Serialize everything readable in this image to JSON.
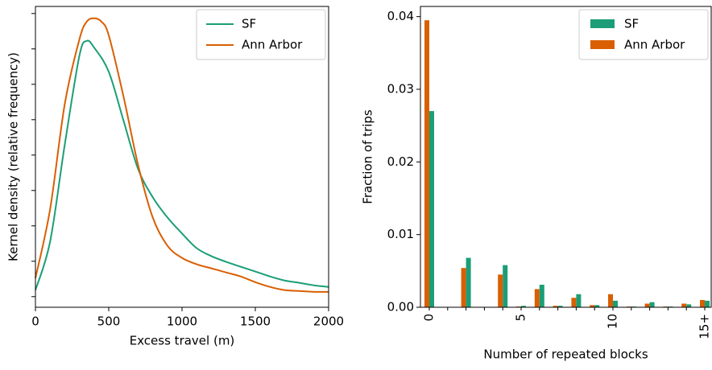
{
  "chart_data": [
    {
      "type": "line",
      "xlabel": "Excess travel (m)",
      "ylabel": "Kernel density (relative frequency)",
      "xlim": [
        0,
        2000
      ],
      "xticks": [
        0,
        500,
        1000,
        1500,
        2000
      ],
      "ylim": [
        -6e-05,
        0.00164
      ],
      "yticks": [
        0,
        0.0002,
        0.0004,
        0.0006,
        0.0008,
        0.001,
        0.0012,
        0.0014,
        0.0016
      ],
      "show_ytick_labels": false,
      "legend": "upper right",
      "series": [
        {
          "name": "SF",
          "color": "#1b9e77",
          "x": [
            0,
            100,
            200,
            300,
            350,
            400,
            500,
            600,
            700,
            800,
            900,
            1000,
            1100,
            1200,
            1300,
            1400,
            1500,
            1600,
            1700,
            1800,
            1900,
            2000
          ],
          "values": [
            3.7e-05,
            0.000311,
            0.000859,
            0.001362,
            0.001445,
            0.001408,
            0.001271,
            0.000997,
            0.000722,
            0.000562,
            0.000448,
            0.000357,
            0.000274,
            0.000229,
            0.000197,
            0.000169,
            0.000142,
            0.000114,
            9.1e-05,
            7.8e-05,
            6.4e-05,
            5.5e-05
          ]
        },
        {
          "name": "Ann Arbor",
          "color": "#d95f02",
          "x": [
            0,
            100,
            200,
            300,
            350,
            400,
            450,
            500,
            600,
            700,
            800,
            900,
            1000,
            1100,
            1200,
            1300,
            1400,
            1500,
            1600,
            1700,
            1800,
            1900,
            2000
          ],
          "values": [
            0.000105,
            0.000494,
            0.001088,
            0.001454,
            0.001554,
            0.001573,
            0.001554,
            0.001477,
            0.001134,
            0.000745,
            0.000448,
            0.000288,
            0.000219,
            0.000183,
            0.00016,
            0.000137,
            0.000114,
            8.2e-05,
            5.5e-05,
            3.7e-05,
            3.2e-05,
            2.7e-05,
            2.7e-05
          ]
        }
      ]
    },
    {
      "type": "bar",
      "xlabel": "Number of repeated blocks",
      "ylabel": "Fraction of trips",
      "categories": [
        "0",
        null,
        null,
        null,
        null,
        "5",
        null,
        null,
        null,
        null,
        "10",
        null,
        null,
        null,
        null,
        "15+"
      ],
      "ylim": [
        0,
        0.0414
      ],
      "yticks": [
        {
          "value": 0,
          "label": "0.00"
        },
        0.01,
        0.02,
        0.03,
        0.04
      ],
      "legend": "upper right",
      "series": [
        {
          "name": "SF",
          "color": "#1b9e77",
          "values": [
            0.027,
            5e-05,
            0.0068,
            0,
            0.0058,
            0.0002,
            0.0031,
            0.0002,
            0.0018,
            0.0003,
            0.0009,
            0.0001,
            0.0007,
            0.0001,
            0.0004,
            0.0009
          ]
        },
        {
          "name": "Ann Arbor",
          "color": "#d95f02",
          "values": [
            0.0395,
            0,
            0.0054,
            0,
            0.0045,
            0.0001,
            0.0025,
            0.0002,
            0.0013,
            0.0003,
            0.0018,
            0.0001,
            0.0005,
            0.0001,
            0.0005,
            0.001
          ]
        }
      ]
    }
  ]
}
